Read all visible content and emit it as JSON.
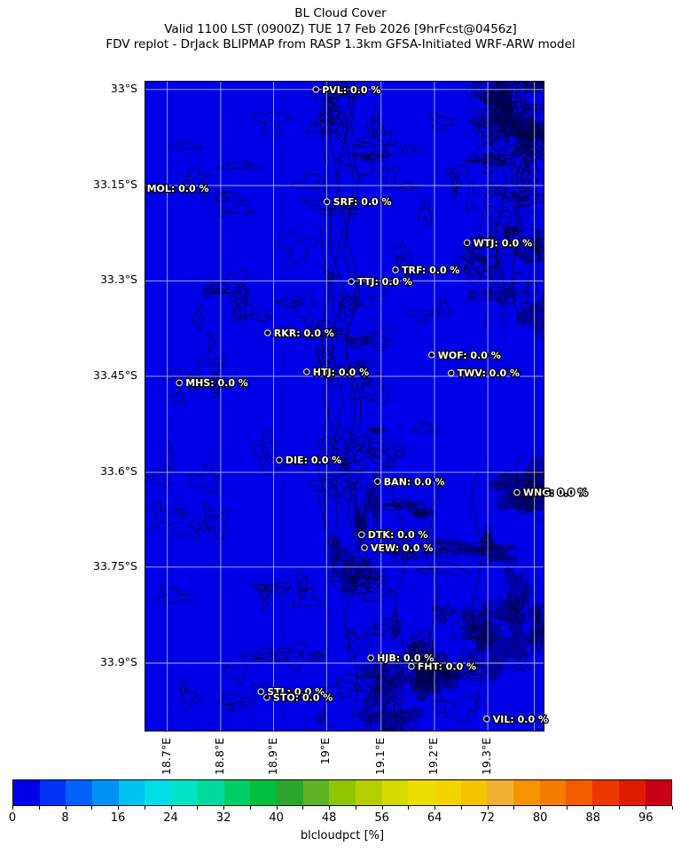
{
  "chart_data": {
    "type": "heatmap",
    "title": "BL Cloud Cover",
    "subtitle": "Valid 1100 LST (0900Z) TUE 17 Feb 2026 [9hrFcst@0456z]",
    "source_line": "FDV replot - DrJack BLIPMAP from RASP 1.3km GFSA-Initiated WRF-ARW model",
    "field": "blcloudpct",
    "units": "%",
    "uniform_field_value": "0.0 %",
    "grid_on": true,
    "x_axis": {
      "ticks": [
        {
          "label": "18.7°E",
          "f": 0.055
        },
        {
          "label": "18.8°E",
          "f": 0.189
        },
        {
          "label": "18.9°E",
          "f": 0.322
        },
        {
          "label": "19°E",
          "f": 0.455
        },
        {
          "label": "19.1°E",
          "f": 0.592
        },
        {
          "label": "19.2°E",
          "f": 0.726
        },
        {
          "label": "19.3°E",
          "f": 0.86
        }
      ],
      "extra_gridlines_f": [
        0.977
      ]
    },
    "y_axis": {
      "ticks": [
        {
          "label": "33°S",
          "f": 0.012
        },
        {
          "label": "33.15°S",
          "f": 0.16
        },
        {
          "label": "33.3°S",
          "f": 0.307
        },
        {
          "label": "33.45°S",
          "f": 0.454
        },
        {
          "label": "33.6°S",
          "f": 0.602
        },
        {
          "label": "33.75°S",
          "f": 0.748
        },
        {
          "label": "33.9°S",
          "f": 0.896
        }
      ]
    },
    "stations": [
      {
        "id": "PVL",
        "value": "0.0 %",
        "label": "PVL: 0.0 %",
        "fx": 0.428,
        "fy": 0.012,
        "dot_visible": true
      },
      {
        "id": "MOL",
        "value": "0.0 %",
        "label": "MOL: 0.0 %",
        "fx": -0.012,
        "fy": 0.164,
        "dot_visible": false
      },
      {
        "id": "SRF",
        "value": "0.0 %",
        "label": "SRF: 0.0 %",
        "fx": 0.456,
        "fy": 0.185,
        "dot_visible": true
      },
      {
        "id": "WTJ",
        "value": "0.0 %",
        "label": "WTJ: 0.0 %",
        "fx": 0.808,
        "fy": 0.248,
        "dot_visible": true
      },
      {
        "id": "TRF",
        "value": "0.0 %",
        "label": "TRF: 0.0 %",
        "fx": 0.628,
        "fy": 0.29,
        "dot_visible": true
      },
      {
        "id": "TTJ",
        "value": "0.0 %",
        "label": "TTJ: 0.0 %",
        "fx": 0.517,
        "fy": 0.308,
        "dot_visible": true
      },
      {
        "id": "RKR",
        "value": "0.0 %",
        "label": "RKR: 0.0 %",
        "fx": 0.307,
        "fy": 0.387,
        "dot_visible": true
      },
      {
        "id": "WOF",
        "value": "0.0 %",
        "label": "WOF: 0.0 %",
        "fx": 0.719,
        "fy": 0.421,
        "dot_visible": true
      },
      {
        "id": "HTJ",
        "value": "0.0 %",
        "label": "HTJ: 0.0 %",
        "fx": 0.405,
        "fy": 0.447,
        "dot_visible": true
      },
      {
        "id": "TWV",
        "value": "0.0 %",
        "label": "TWV: 0.0 %",
        "fx": 0.768,
        "fy": 0.449,
        "dot_visible": true
      },
      {
        "id": "MHS",
        "value": "0.0 %",
        "label": "MHS: 0.0 %",
        "fx": 0.085,
        "fy": 0.464,
        "dot_visible": true
      },
      {
        "id": "DIE",
        "value": "0.0 %",
        "label": "DIE: 0.0 %",
        "fx": 0.336,
        "fy": 0.583,
        "dot_visible": true
      },
      {
        "id": "BAN",
        "value": "0.0 %",
        "label": "BAN: 0.0 %",
        "fx": 0.583,
        "fy": 0.616,
        "dot_visible": true
      },
      {
        "id": "WNG",
        "value": "0.0 %",
        "label": "WNG: 0.0 %",
        "fx": 0.933,
        "fy": 0.633,
        "dot_visible": true
      },
      {
        "id": "DTK",
        "value": "0.0 %",
        "label": "DTK: 0.0 %",
        "fx": 0.543,
        "fy": 0.698,
        "dot_visible": true
      },
      {
        "id": "VEW",
        "value": "0.0 %",
        "label": "VEW: 0.0 %",
        "fx": 0.55,
        "fy": 0.718,
        "dot_visible": true
      },
      {
        "id": "HJB",
        "value": "0.0 %",
        "label": "HJB: 0.0 %",
        "fx": 0.566,
        "fy": 0.888,
        "dot_visible": true
      },
      {
        "id": "FHT",
        "value": "0.0 %",
        "label": "FHT: 0.0 %",
        "fx": 0.668,
        "fy": 0.901,
        "dot_visible": true
      },
      {
        "id": "STL",
        "value": "0.0 %",
        "label": "STL: 0.0 %",
        "fx": 0.29,
        "fy": 0.94,
        "dot_visible": true
      },
      {
        "id": "STO",
        "value": "0.0 %",
        "label": "STO: 0.0 %",
        "fx": 0.305,
        "fy": 0.949,
        "dot_visible": true
      },
      {
        "id": "VIL",
        "value": "0.0 %",
        "label": "VIL: 0.0 %",
        "fx": 0.857,
        "fy": 0.982,
        "dot_visible": true
      }
    ],
    "colorbar": {
      "caption": "blcloudpct [%]",
      "range": [
        0,
        100
      ],
      "segment_size": 4,
      "tick_step_minor": 4,
      "tick_labels": [
        "0",
        "8",
        "16",
        "24",
        "32",
        "40",
        "48",
        "56",
        "64",
        "72",
        "80",
        "88",
        "96"
      ],
      "tick_values": [
        0,
        8,
        16,
        24,
        32,
        40,
        48,
        56,
        64,
        72,
        80,
        88,
        96
      ],
      "segment_colors": [
        "#0000e6",
        "#0032f4",
        "#0062fa",
        "#0092f4",
        "#00c2f0",
        "#00dee8",
        "#00e4c6",
        "#00da9c",
        "#00ce68",
        "#00be3e",
        "#2ca62c",
        "#5eb224",
        "#90c600",
        "#b4ce00",
        "#d4da00",
        "#ecde00",
        "#f4d400",
        "#f4c400",
        "#f2b032",
        "#f49400",
        "#f47c00",
        "#f45c00",
        "#ec3600",
        "#e01c00",
        "#c80018"
      ]
    },
    "map_colors": {
      "background": "#0000e6",
      "contour": "#000026",
      "gridline": "#ffffff",
      "station_dot_fill": "#000000",
      "station_dot_edge": "#ffffff",
      "station_text_fill": "#ffffff",
      "station_text_outline": "#000000"
    }
  }
}
